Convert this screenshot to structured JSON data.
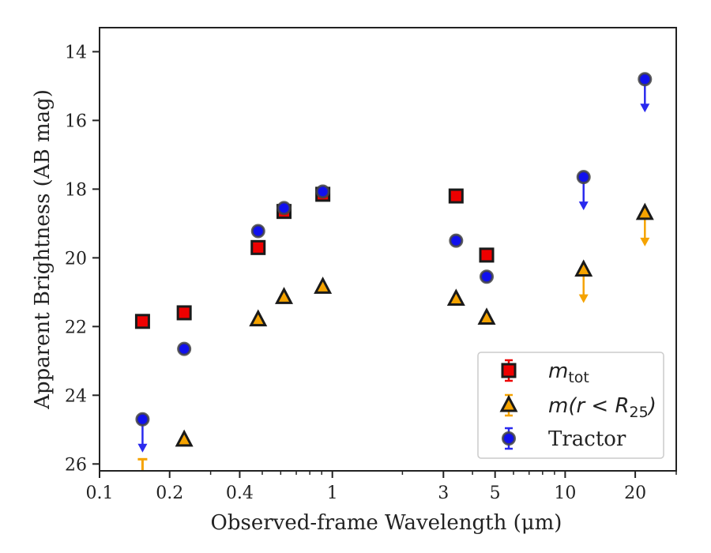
{
  "chart_data": {
    "type": "scatter",
    "title": "",
    "xlabel": "Observed-frame Wavelength (μm)",
    "ylabel": "Apparent Brightness (AB mag)",
    "xscale": "log",
    "xlim": [
      0.1,
      30
    ],
    "ylim": [
      26.2,
      13.3
    ],
    "y_inverted": true,
    "x_ticks": [
      0.1,
      0.2,
      0.4,
      1,
      3,
      5,
      10,
      20
    ],
    "x_tick_labels": [
      "0.1",
      "0.2",
      "0.4",
      "1",
      "3",
      "5",
      "10",
      "20"
    ],
    "y_ticks": [
      14,
      16,
      18,
      20,
      22,
      24,
      26
    ],
    "y_tick_labels": [
      "14",
      "16",
      "18",
      "20",
      "22",
      "24",
      "26"
    ],
    "grid": false,
    "legend_position": "bottom-right",
    "series": [
      {
        "name": "m_tot",
        "legend_label": {
          "main": "m",
          "sub": "tot"
        },
        "marker": "square",
        "color": "#ee0000",
        "edge_color": "#1a1a1a",
        "points": [
          {
            "x": 0.153,
            "y": 21.85
          },
          {
            "x": 0.231,
            "y": 21.6
          },
          {
            "x": 0.48,
            "y": 19.7
          },
          {
            "x": 0.62,
            "y": 18.65
          },
          {
            "x": 0.91,
            "y": 18.15
          },
          {
            "x": 3.4,
            "y": 18.2
          },
          {
            "x": 4.6,
            "y": 19.92
          }
        ]
      },
      {
        "name": "m(r < R25)",
        "legend_label": {
          "main": "m(r < R",
          "sub": "25",
          "close": ")"
        },
        "marker": "triangle",
        "color": "#f5a300",
        "edge_color": "#1a1a1a",
        "points": [
          {
            "x": 0.153,
            "y": 26.0,
            "upper_limit": true
          },
          {
            "x": 0.231,
            "y": 25.3
          },
          {
            "x": 0.48,
            "y": 21.8
          },
          {
            "x": 0.62,
            "y": 21.15
          },
          {
            "x": 0.91,
            "y": 20.85
          },
          {
            "x": 3.4,
            "y": 21.2
          },
          {
            "x": 4.6,
            "y": 21.75
          },
          {
            "x": 12.0,
            "y": 20.35,
            "upper_limit": true
          },
          {
            "x": 22.0,
            "y": 18.7,
            "upper_limit": true
          }
        ]
      },
      {
        "name": "Tractor",
        "legend_label": {
          "main": "Tractor"
        },
        "marker": "circle",
        "color": "#1010ee",
        "edge_color": "#444444",
        "points": [
          {
            "x": 0.153,
            "y": 24.7,
            "upper_limit": true
          },
          {
            "x": 0.231,
            "y": 22.65
          },
          {
            "x": 0.48,
            "y": 19.22
          },
          {
            "x": 0.62,
            "y": 18.55
          },
          {
            "x": 0.91,
            "y": 18.07
          },
          {
            "x": 3.4,
            "y": 19.5
          },
          {
            "x": 4.6,
            "y": 20.55
          },
          {
            "x": 12.0,
            "y": 17.65,
            "upper_limit": true
          },
          {
            "x": 22.0,
            "y": 14.8,
            "upper_limit": true
          }
        ]
      }
    ]
  }
}
